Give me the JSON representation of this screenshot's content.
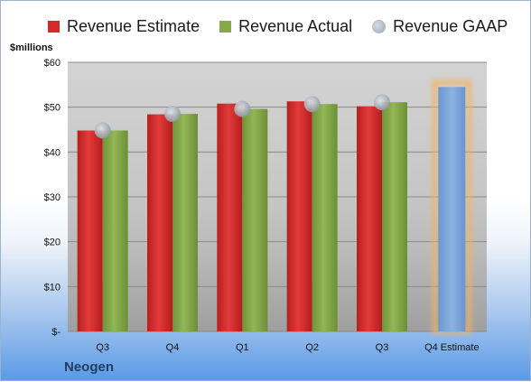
{
  "chart_data": {
    "type": "bar",
    "categories": [
      "Q3",
      "Q4",
      "Q1",
      "Q2",
      "Q3",
      "Q4 Estimate"
    ],
    "series": [
      {
        "name": "Revenue Estimate",
        "values": [
          44.8,
          48.4,
          50.8,
          51.3,
          50.2,
          null
        ]
      },
      {
        "name": "Revenue Actual",
        "values": [
          44.8,
          48.5,
          49.6,
          50.7,
          51.1,
          null
        ]
      },
      {
        "name": "Revenue GAAP",
        "values": [
          44.8,
          48.5,
          49.6,
          50.7,
          51.1,
          null
        ]
      }
    ],
    "forecast": {
      "category": "Q4 Estimate",
      "value": 54.5
    },
    "ylabel": "$millions",
    "ylim": [
      0,
      60
    ],
    "yticks": [
      0,
      10,
      20,
      30,
      40,
      50,
      60
    ],
    "ytick_labels": [
      "$-",
      "$10",
      "$20",
      "$30",
      "$40",
      "$50",
      "$60"
    ],
    "grid": true,
    "legend_position": "top",
    "colors": {
      "estimate": "#d42a2a",
      "actual": "#86a94a",
      "gaap": "#a7afb8",
      "forecast": "#7ea6d8",
      "forecast_glow": "#f3b25e"
    }
  },
  "footer": {
    "company": "Neogen"
  }
}
